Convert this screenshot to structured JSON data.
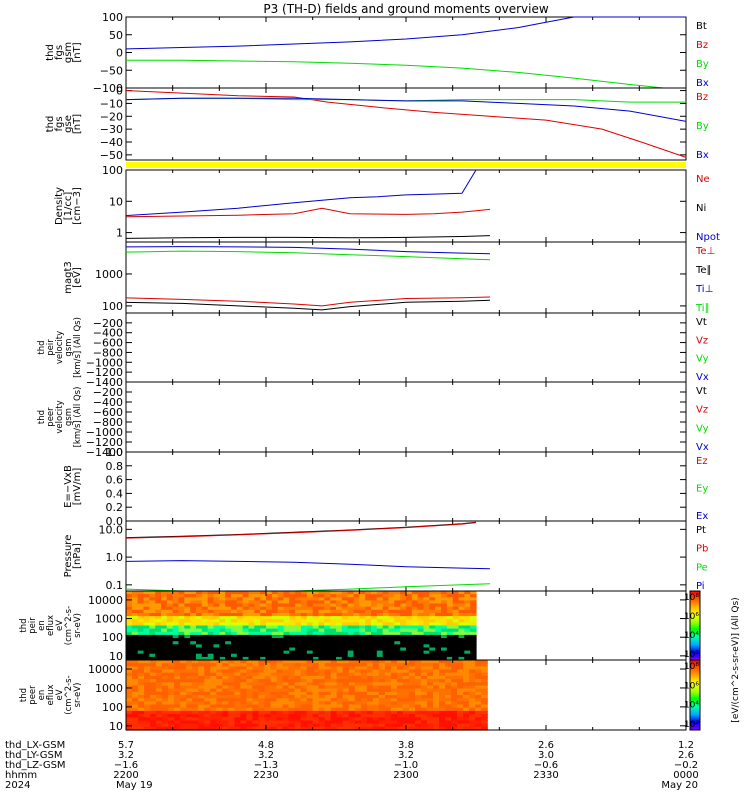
{
  "title": "P3 (TH-D) fields and ground moments overview",
  "colors": {
    "black": "#000000",
    "red": "#dd0000",
    "green": "#00dd00",
    "blue": "#0000cc",
    "yellow": "#ffff00"
  },
  "chart_data": {
    "type": "line",
    "x_range": [
      "22:00",
      "00:00"
    ],
    "panels": [
      {
        "name": "fgs-gsm",
        "ylabel": [
          "thd",
          "fgs",
          "gsm",
          "[nT]"
        ],
        "yticks": [
          "100",
          "50",
          "0",
          "−50",
          "−100"
        ],
        "ylim": [
          -100,
          100
        ],
        "legend": [
          {
            "label": "Bt",
            "color": "black"
          },
          {
            "label": "Bz",
            "color": "red"
          },
          {
            "label": "By",
            "color": "green"
          },
          {
            "label": "Bx",
            "color": "blue"
          }
        ],
        "series": [
          {
            "color": "blue",
            "x": [
              0,
              0.1,
              0.2,
              0.3,
              0.4,
              0.5,
              0.6,
              0.7,
              0.75,
              0.8,
              0.9,
              1.0
            ],
            "y": [
              10,
              14,
              18,
              24,
              30,
              38,
              50,
              70,
              85,
              100,
              125,
              150
            ]
          },
          {
            "color": "green",
            "x": [
              0,
              0.1,
              0.2,
              0.3,
              0.4,
              0.5,
              0.6,
              0.7,
              0.8,
              0.9,
              0.96,
              1.0
            ],
            "y": [
              -22,
              -22,
              -24,
              -26,
              -30,
              -36,
              -44,
              -56,
              -72,
              -90,
              -100,
              -112
            ]
          }
        ]
      },
      {
        "name": "fgs-gse",
        "ylabel": [
          "thd",
          "fgs",
          "gse",
          "[nT]"
        ],
        "yticks": [
          "0",
          "−10",
          "−20",
          "−30",
          "−40",
          "−50"
        ],
        "ylim": [
          -54,
          2
        ],
        "legend": [
          {
            "label": "Bz",
            "color": "red"
          },
          {
            "label": "By",
            "color": "green"
          },
          {
            "label": "Bx",
            "color": "blue"
          }
        ],
        "series": [
          {
            "color": "red",
            "x": [
              0,
              0.1,
              0.2,
              0.3,
              0.36,
              0.45,
              0.55,
              0.65,
              0.75,
              0.85,
              0.92,
              1.0
            ],
            "y": [
              0,
              -2,
              -4,
              -5,
              -9,
              -13,
              -17,
              -20,
              -23,
              -30,
              -40,
              -52
            ]
          },
          {
            "color": "green",
            "x": [
              0,
              0.1,
              0.2,
              0.3,
              0.4,
              0.5,
              0.6,
              0.7,
              0.8,
              0.9,
              1.0
            ],
            "y": [
              -7,
              -6,
              -6,
              -7,
              -7,
              -8,
              -7,
              -7,
              -7,
              -9,
              -9
            ]
          },
          {
            "color": "blue",
            "x": [
              0,
              0.1,
              0.2,
              0.3,
              0.4,
              0.5,
              0.6,
              0.7,
              0.8,
              0.9,
              1.0
            ],
            "y": [
              -7,
              -6,
              -6,
              -6,
              -7,
              -8,
              -8,
              -10,
              -12,
              -16,
              -24
            ]
          }
        ]
      },
      {
        "name": "density",
        "ylabel": [
          "Density",
          "[1/cc]",
          "[cm−3]"
        ],
        "yticks": [
          "100",
          "10",
          "1"
        ],
        "ylim": [
          0.5,
          100
        ],
        "log": true,
        "legend": [
          {
            "label": "Ne",
            "color": "red"
          },
          {
            "label": "Ni",
            "color": "black"
          },
          {
            "label": "Npot",
            "color": "blue"
          }
        ],
        "series": [
          {
            "color": "blue",
            "x": [
              0,
              0.1,
              0.2,
              0.3,
              0.4,
              0.45,
              0.5,
              0.55,
              0.6,
              0.625
            ],
            "y": [
              3.5,
              4.5,
              6,
              9,
              13,
              14,
              16,
              17,
              18,
              100
            ]
          },
          {
            "color": "red",
            "x": [
              0,
              0.1,
              0.2,
              0.3,
              0.35,
              0.4,
              0.5,
              0.55,
              0.6,
              0.65
            ],
            "y": [
              3.2,
              3.4,
              3.6,
              4,
              6,
              4,
              3.8,
              4,
              4.5,
              5.5
            ]
          },
          {
            "color": "black",
            "x": [
              0,
              0.1,
              0.2,
              0.3,
              0.4,
              0.5,
              0.6,
              0.65
            ],
            "y": [
              0.65,
              0.68,
              0.7,
              0.7,
              0.68,
              0.7,
              0.75,
              0.8
            ]
          }
        ]
      },
      {
        "name": "temperature",
        "ylabel": [
          "magt3",
          "[eV]"
        ],
        "yticks": [
          "1000",
          "100"
        ],
        "ylim": [
          60,
          10000
        ],
        "log": true,
        "legend": [
          {
            "label": "Te⊥",
            "color": "red"
          },
          {
            "label": "Te∥",
            "color": "black"
          },
          {
            "label": "Ti⊥",
            "color": "blue"
          },
          {
            "label": "Ti∥",
            "color": "green"
          }
        ],
        "series": [
          {
            "color": "blue",
            "x": [
              0,
              0.1,
              0.2,
              0.3,
              0.4,
              0.5,
              0.6,
              0.65
            ],
            "y": [
              7000,
              7200,
              7000,
              6800,
              6000,
              5000,
              4500,
              4300
            ]
          },
          {
            "color": "green",
            "x": [
              0,
              0.1,
              0.2,
              0.3,
              0.4,
              0.5,
              0.6,
              0.65
            ],
            "y": [
              4800,
              5200,
              5000,
              4600,
              4000,
              3500,
              3000,
              2800
            ]
          },
          {
            "color": "red",
            "x": [
              0,
              0.1,
              0.2,
              0.3,
              0.35,
              0.4,
              0.5,
              0.6,
              0.65
            ],
            "y": [
              180,
              160,
              140,
              115,
              100,
              130,
              170,
              180,
              190
            ]
          },
          {
            "color": "black",
            "x": [
              0,
              0.1,
              0.2,
              0.3,
              0.35,
              0.4,
              0.5,
              0.6,
              0.65
            ],
            "y": [
              130,
              120,
              100,
              85,
              75,
              95,
              130,
              140,
              150
            ]
          }
        ]
      },
      {
        "name": "peir-velocity",
        "ylabel": [
          "thd",
          "peir",
          "velocity",
          "gsm",
          "[km/s] (All Qs)"
        ],
        "yticks": [
          "−200",
          "−400",
          "−600",
          "−800",
          "−1000",
          "−1200",
          "−1400"
        ],
        "ylim": [
          -1400,
          0
        ],
        "legend": [
          {
            "label": "Vt",
            "color": "black"
          },
          {
            "label": "Vz",
            "color": "red"
          },
          {
            "label": "Vy",
            "color": "green"
          },
          {
            "label": "Vx",
            "color": "blue"
          }
        ],
        "series": []
      },
      {
        "name": "peer-velocity",
        "ylabel": [
          "thd",
          "peer",
          "velocity",
          "gsm",
          "[km/s] (All Qs)"
        ],
        "yticks": [
          "−200",
          "−400",
          "−600",
          "−800",
          "−1000",
          "−1200",
          "−1400"
        ],
        "ylim": [
          -1400,
          0
        ],
        "legend": [
          {
            "label": "Vt",
            "color": "black"
          },
          {
            "label": "Vz",
            "color": "red"
          },
          {
            "label": "Vy",
            "color": "green"
          },
          {
            "label": "Vx",
            "color": "blue"
          }
        ],
        "series": []
      },
      {
        "name": "efield",
        "ylabel": [
          "E=−VxB",
          "[mV/m]"
        ],
        "yticks": [
          "1.0",
          "0.8",
          "0.6",
          "0.4",
          "0.2",
          "0.0"
        ],
        "ylim": [
          0,
          1
        ],
        "legend": [
          {
            "label": "Ez",
            "color": "red"
          },
          {
            "label": "Ey",
            "color": "green"
          },
          {
            "label": "Ex",
            "color": "blue"
          }
        ],
        "series": []
      },
      {
        "name": "pressure",
        "ylabel": [
          "Pressure",
          "[nPa]"
        ],
        "yticks": [
          "10.0",
          "1.0",
          "0.1"
        ],
        "ylim": [
          0.06,
          20
        ],
        "log": true,
        "legend": [
          {
            "label": "Pt",
            "color": "black"
          },
          {
            "label": "Pb",
            "color": "red"
          },
          {
            "label": "Pe",
            "color": "green"
          },
          {
            "label": "Pi",
            "color": "blue"
          }
        ],
        "series": [
          {
            "color": "black",
            "x": [
              0,
              0.1,
              0.2,
              0.3,
              0.4,
              0.5,
              0.6,
              0.625
            ],
            "y": [
              5,
              5.6,
              6.5,
              7.8,
              9.5,
              12,
              16,
              18
            ]
          },
          {
            "color": "red",
            "x": [
              0,
              0.1,
              0.2,
              0.3,
              0.4,
              0.5,
              0.6,
              0.625
            ],
            "y": [
              4.8,
              5.4,
              6.3,
              7.6,
              9.2,
              11.6,
              15.5,
              17.5
            ]
          },
          {
            "color": "blue",
            "x": [
              0,
              0.1,
              0.2,
              0.3,
              0.4,
              0.5,
              0.6,
              0.65
            ],
            "y": [
              0.7,
              0.75,
              0.7,
              0.65,
              0.55,
              0.45,
              0.4,
              0.38
            ]
          },
          {
            "color": "green",
            "x": [
              0,
              0.1,
              0.2,
              0.3,
              0.4,
              0.5,
              0.6,
              0.65
            ],
            "y": [
              0.07,
              0.06,
              0.055,
              0.06,
              0.07,
              0.085,
              0.1,
              0.11
            ]
          }
        ]
      },
      {
        "name": "peir-spectrogram",
        "type": "heatmap",
        "ylabel": [
          "thd",
          "peir",
          "en",
          "eflux",
          "eV",
          "(cm^2-s-",
          "sr-eV)"
        ],
        "yticks": [
          "10000",
          "1000",
          "100",
          "10"
        ],
        "ylim": [
          6,
          30000
        ],
        "log": true,
        "data_x_end": 0.625
      },
      {
        "name": "peer-spectrogram",
        "type": "heatmap",
        "ylabel": [
          "thd",
          "peer",
          "en",
          "eflux",
          "eV",
          "(cm^2-s-",
          "sr-eV)"
        ],
        "yticks": [
          "10000",
          "1000",
          "100",
          "10"
        ],
        "ylim": [
          6,
          30000
        ],
        "log": true,
        "data_x_end": 0.645
      }
    ],
    "colorbar": {
      "label": "[eV/(cm^2-s-sr-eV)] (All Qs)",
      "ticks_upper": [
        "10⁸",
        "10⁶",
        "10⁴",
        "10²"
      ],
      "ticks_lower": [
        "10⁸",
        "10⁶",
        "10⁴",
        "10²"
      ]
    },
    "x_axis": {
      "row_labels": [
        "thd_LX-GSM",
        "thd_LY-GSM",
        "thd_LZ-GSM",
        "hhmm",
        "2024"
      ],
      "ticks": [
        {
          "x": 0,
          "values": [
            "5.7",
            "3.2",
            "−1.6",
            "2200",
            "May 19"
          ]
        },
        {
          "x": 0.25,
          "values": [
            "4.8",
            "3.2",
            "−1.3",
            "2230",
            ""
          ]
        },
        {
          "x": 0.5,
          "values": [
            "3.8",
            "3.2",
            "−1.0",
            "2300",
            ""
          ]
        },
        {
          "x": 0.75,
          "values": [
            "2.6",
            "3.0",
            "−0.6",
            "2330",
            ""
          ]
        },
        {
          "x": 1.0,
          "values": [
            "1.2",
            "2.6",
            "−0.2",
            "0000",
            "May 20"
          ]
        }
      ]
    }
  }
}
